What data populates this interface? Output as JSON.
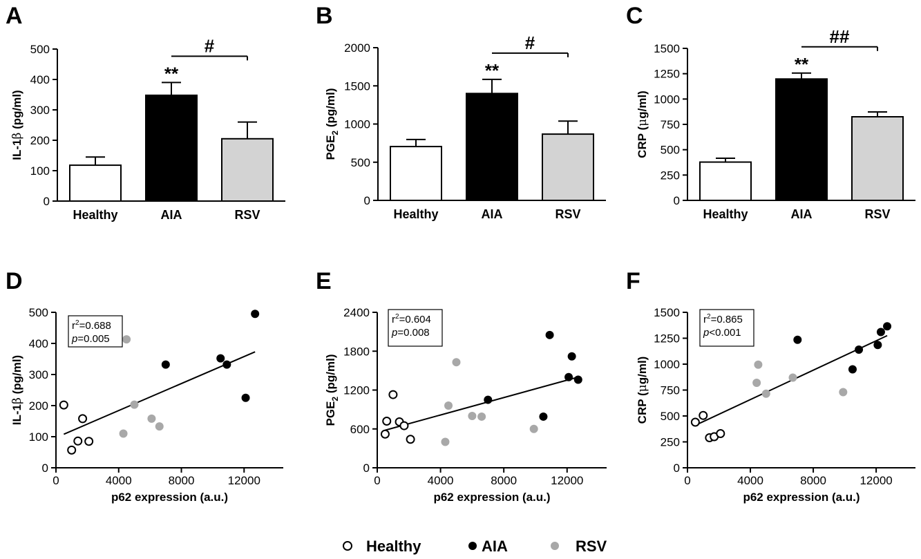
{
  "colors": {
    "healthy": "#ffffff",
    "aia": "#000000",
    "rsv": "#d3d3d3",
    "rsv_point": "#a8a8a8",
    "stroke": "#000000"
  },
  "legend": [
    {
      "label": "Healthy",
      "group": "healthy"
    },
    {
      "label": "AIA",
      "group": "aia"
    },
    {
      "label": "RSV",
      "group": "rsv"
    }
  ],
  "chart_data": [
    {
      "panel": "A",
      "type": "bar",
      "ylabel_parts": [
        "IL-1",
        "β",
        " (pg/ml)"
      ],
      "categories": [
        "Healthy",
        "AIA",
        "RSV"
      ],
      "values": [
        118,
        348,
        205
      ],
      "errors": [
        27,
        42,
        55
      ],
      "ylim": [
        0,
        500
      ],
      "yticks": [
        0,
        100,
        200,
        300,
        400,
        500
      ],
      "sig_stars": "**",
      "bracket_label": "#"
    },
    {
      "panel": "B",
      "type": "bar",
      "ylabel_parts": [
        "PGE",
        "2",
        " (pg/ml)"
      ],
      "categories": [
        "Healthy",
        "AIA",
        "RSV"
      ],
      "values": [
        705,
        1400,
        868
      ],
      "errors": [
        92,
        185,
        170
      ],
      "ylim": [
        0,
        2000
      ],
      "yticks": [
        0,
        500,
        1000,
        1500,
        2000
      ],
      "sig_stars": "**",
      "bracket_label": "#"
    },
    {
      "panel": "C",
      "type": "bar",
      "ylabel_parts": [
        "CRP (",
        "μ",
        "g/ml)"
      ],
      "categories": [
        "Healthy",
        "AIA",
        "RSV"
      ],
      "values": [
        378,
        1198,
        825
      ],
      "errors": [
        38,
        58,
        48
      ],
      "ylim": [
        0,
        1500
      ],
      "yticks": [
        0,
        250,
        500,
        750,
        1000,
        1250,
        1500
      ],
      "sig_stars": "**",
      "bracket_label": "##"
    },
    {
      "panel": "D",
      "type": "scatter",
      "xlabel": "p62 expression (a.u.)",
      "ylabel_parts": [
        "IL-1",
        "β",
        " (pg/ml)"
      ],
      "xlim": [
        0,
        14500
      ],
      "xticks": [
        0,
        4000,
        8000,
        12000
      ],
      "ylim": [
        0,
        500
      ],
      "yticks": [
        0,
        100,
        200,
        300,
        400,
        500
      ],
      "r2_text": "0.688",
      "p_text": "=0.005",
      "fit_x": [
        500,
        12700
      ],
      "fit_y": [
        108,
        373
      ],
      "series": [
        {
          "group": "healthy",
          "points": [
            [
              500,
              202
            ],
            [
              1000,
              57
            ],
            [
              1400,
              86
            ],
            [
              1700,
              158
            ],
            [
              2100,
              85
            ]
          ]
        },
        {
          "group": "aia",
          "points": [
            [
              7000,
              332
            ],
            [
              10500,
              352
            ],
            [
              10900,
              332
            ],
            [
              12100,
              225
            ],
            [
              12700,
              495
            ]
          ]
        },
        {
          "group": "rsv",
          "points": [
            [
              4300,
              110
            ],
            [
              4500,
              413
            ],
            [
              5000,
              203
            ],
            [
              6100,
              158
            ],
            [
              6600,
              133
            ]
          ]
        }
      ]
    },
    {
      "panel": "E",
      "type": "scatter",
      "xlabel": "p62 expression (a.u.)",
      "ylabel_parts": [
        "PGE",
        "2",
        " (pg/ml)"
      ],
      "xlim": [
        0,
        14500
      ],
      "xticks": [
        0,
        4000,
        8000,
        12000
      ],
      "ylim": [
        0,
        2400
      ],
      "yticks": [
        0,
        600,
        1200,
        1800,
        2400
      ],
      "r2_text": "0.604",
      "p_text": "=0.008",
      "fit_x": [
        500,
        12700
      ],
      "fit_y": [
        580,
        1400
      ],
      "series": [
        {
          "group": "healthy",
          "points": [
            [
              500,
              520
            ],
            [
              600,
              720
            ],
            [
              1000,
              1130
            ],
            [
              1400,
              710
            ],
            [
              1700,
              650
            ],
            [
              2100,
              440
            ]
          ]
        },
        {
          "group": "aia",
          "points": [
            [
              7000,
              1050
            ],
            [
              10500,
              790
            ],
            [
              10900,
              2050
            ],
            [
              12100,
              1400
            ],
            [
              12300,
              1720
            ],
            [
              12700,
              1360
            ]
          ]
        },
        {
          "group": "rsv",
          "points": [
            [
              4300,
              400
            ],
            [
              4500,
              960
            ],
            [
              5000,
              1630
            ],
            [
              6000,
              800
            ],
            [
              6600,
              790
            ],
            [
              9900,
              600
            ]
          ]
        }
      ]
    },
    {
      "panel": "F",
      "type": "scatter",
      "xlabel": "p62 expression (a.u.)",
      "ylabel_parts": [
        "CRP (",
        "μ",
        "g/ml)"
      ],
      "xlim": [
        0,
        14500
      ],
      "xticks": [
        0,
        4000,
        8000,
        12000
      ],
      "ylim": [
        0,
        1500
      ],
      "yticks": [
        0,
        250,
        500,
        750,
        1000,
        1250,
        1500
      ],
      "r2_text": "0.865",
      "p_text": "<0.001",
      "fit_x": [
        500,
        12700
      ],
      "fit_y": [
        410,
        1275
      ],
      "series": [
        {
          "group": "healthy",
          "points": [
            [
              500,
              440
            ],
            [
              1000,
              505
            ],
            [
              1400,
              290
            ],
            [
              1700,
              300
            ],
            [
              2100,
              330
            ]
          ]
        },
        {
          "group": "aia",
          "points": [
            [
              7000,
              1235
            ],
            [
              10500,
              950
            ],
            [
              10900,
              1140
            ],
            [
              12100,
              1185
            ],
            [
              12300,
              1310
            ],
            [
              12700,
              1365
            ]
          ]
        },
        {
          "group": "rsv",
          "points": [
            [
              4400,
              820
            ],
            [
              4500,
              995
            ],
            [
              5000,
              715
            ],
            [
              6700,
              870
            ],
            [
              9900,
              730
            ]
          ]
        }
      ]
    }
  ]
}
